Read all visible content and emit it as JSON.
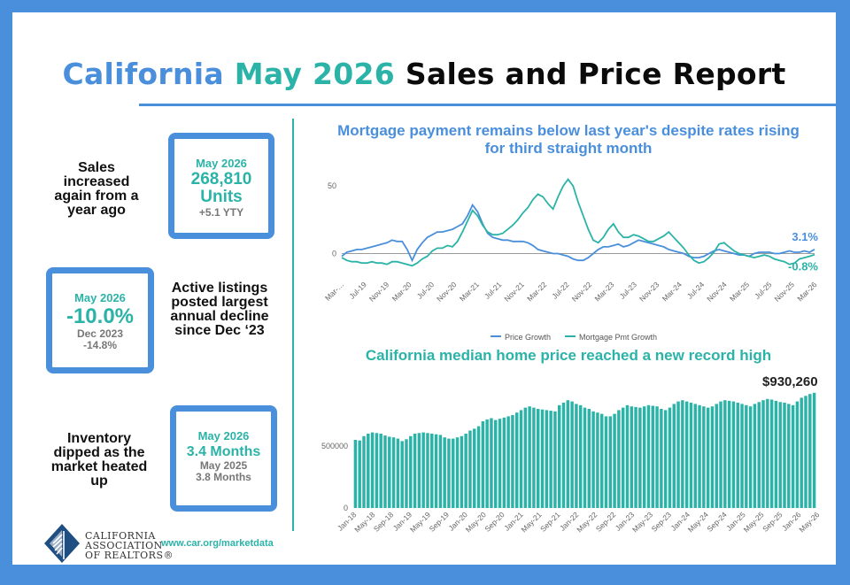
{
  "header": {
    "title_part1": "California",
    "title_part2": "May 2026",
    "title_part3": "Sales and Price Report"
  },
  "sales": {
    "description": "Sales increased again from a year ago",
    "period": "May 2026",
    "value": "268,810",
    "unit": "Units",
    "change": "+5.1 YTY"
  },
  "listings": {
    "description": "Active listings posted largest annual decline since Dec ‘23",
    "period": "May 2026",
    "value": "-10.0%",
    "compare_period": "Dec 2023",
    "compare_value": "-14.8%"
  },
  "inventory": {
    "description": "Inventory dipped as the market heated up",
    "period": "May 2026",
    "value": "3.4 Months",
    "compare_period": "May 2025",
    "compare_value": "3.8 Months"
  },
  "logo": {
    "line1": "CALIFORNIA",
    "line2": "ASSOCIATION",
    "line3": "OF REALTORS®"
  },
  "footer": {
    "url": "www.car.org/marketdata"
  },
  "colors": {
    "blue": "#4a8fdc",
    "teal": "#2bb3a8",
    "dark": "#0b0b0b"
  },
  "chart_data": [
    {
      "type": "line",
      "title": "Mortgage payment remains below last year's despite rates rising for third straight month",
      "x_tick_labels": [
        "Mar-…",
        "Jul-19",
        "Nov-19",
        "Mar-20",
        "Jul-20",
        "Nov-20",
        "Mar-21",
        "Jul-21",
        "Nov-21",
        "Mar-22",
        "Jul-22",
        "Nov-22",
        "Mar-23",
        "Jul-23",
        "Nov-23",
        "Mar-24",
        "Jul-24",
        "Nov-24",
        "Mar-25",
        "Jul-25",
        "Nov-25",
        "Mar-26"
      ],
      "y_ticks": [
        0,
        50
      ],
      "ylim": [
        -18,
        58
      ],
      "series": [
        {
          "name": "Price Growth",
          "color": "#4a8fdc",
          "end_label": "3.1%",
          "values": [
            -2,
            1,
            2,
            3,
            3,
            4,
            5,
            6,
            7,
            8,
            10,
            9,
            9,
            3,
            -5,
            3,
            8,
            12,
            14,
            16,
            16,
            17,
            18,
            20,
            22,
            28,
            36,
            31,
            22,
            15,
            12,
            11,
            10,
            10,
            9,
            9,
            9,
            8,
            6,
            3,
            2,
            1,
            0,
            0,
            -1,
            -2,
            -4,
            -5,
            -5,
            -3,
            0,
            3,
            5,
            5,
            6,
            7,
            5,
            6,
            8,
            10,
            9,
            8,
            7,
            6,
            5,
            3,
            2,
            1,
            0,
            -2,
            -3,
            -3,
            -2,
            0,
            2,
            3,
            2,
            1,
            0,
            -1,
            -1,
            -2,
            0,
            1,
            1,
            1,
            0,
            0,
            1,
            2,
            1,
            1,
            2,
            1,
            3.1
          ]
        },
        {
          "name": "Mortgage Pmt Growth",
          "color": "#2bb3a8",
          "end_label": "-0.8%",
          "values": [
            -3,
            -5,
            -6,
            -6,
            -7,
            -7,
            -6,
            -7,
            -7,
            -8,
            -6,
            -6,
            -7,
            -8,
            -9,
            -7,
            -4,
            -2,
            2,
            4,
            4,
            6,
            5,
            9,
            16,
            24,
            32,
            28,
            21,
            16,
            14,
            14,
            15,
            18,
            21,
            25,
            30,
            34,
            40,
            44,
            42,
            37,
            33,
            42,
            50,
            55,
            50,
            38,
            28,
            18,
            10,
            8,
            12,
            18,
            22,
            16,
            12,
            12,
            14,
            13,
            11,
            9,
            9,
            11,
            13,
            16,
            12,
            8,
            4,
            -1,
            -5,
            -7,
            -6,
            -3,
            1,
            7,
            8,
            5,
            2,
            0,
            -1,
            -2,
            -3,
            -2,
            -1,
            -2,
            -4,
            -5,
            -6,
            -8,
            -7,
            -4,
            -3,
            -2,
            -0.8
          ]
        }
      ]
    },
    {
      "type": "bar",
      "title": "California median home price reached a new record high",
      "x_tick_labels": [
        "Jan-18",
        "May-18",
        "Sep-18",
        "Jan-19",
        "May-19",
        "Sep-19",
        "Jan-20",
        "May-20",
        "Sep-20",
        "Jan-21",
        "May-21",
        "Sep-21",
        "Jan-22",
        "May-22",
        "Sep-22",
        "Jan-23",
        "May-23",
        "Sep-23",
        "Jan-24",
        "May-24",
        "Sep-24",
        "Jan-25",
        "May-25",
        "Sep-25",
        "Jan-26",
        "May-26"
      ],
      "y_ticks": [
        0,
        500000
      ],
      "ylim": [
        0,
        1000000
      ],
      "last_value_label": "$930,260",
      "color": "#2bb3a8",
      "values": [
        550000,
        545000,
        580000,
        600000,
        610000,
        605000,
        600000,
        585000,
        575000,
        570000,
        560000,
        540000,
        555000,
        580000,
        600000,
        605000,
        610000,
        605000,
        600000,
        595000,
        590000,
        570000,
        560000,
        560000,
        570000,
        580000,
        600000,
        625000,
        640000,
        660000,
        700000,
        715000,
        725000,
        710000,
        720000,
        730000,
        740000,
        750000,
        770000,
        790000,
        810000,
        820000,
        810000,
        800000,
        795000,
        790000,
        785000,
        780000,
        830000,
        850000,
        870000,
        860000,
        840000,
        830000,
        810000,
        800000,
        780000,
        770000,
        760000,
        740000,
        740000,
        760000,
        790000,
        810000,
        830000,
        820000,
        815000,
        810000,
        820000,
        830000,
        825000,
        820000,
        800000,
        790000,
        810000,
        840000,
        860000,
        870000,
        860000,
        850000,
        840000,
        830000,
        820000,
        810000,
        820000,
        840000,
        860000,
        870000,
        865000,
        860000,
        850000,
        840000,
        830000,
        820000,
        840000,
        855000,
        870000,
        880000,
        875000,
        865000,
        855000,
        850000,
        840000,
        830000,
        860000,
        890000,
        905000,
        920000,
        930260
      ]
    }
  ]
}
